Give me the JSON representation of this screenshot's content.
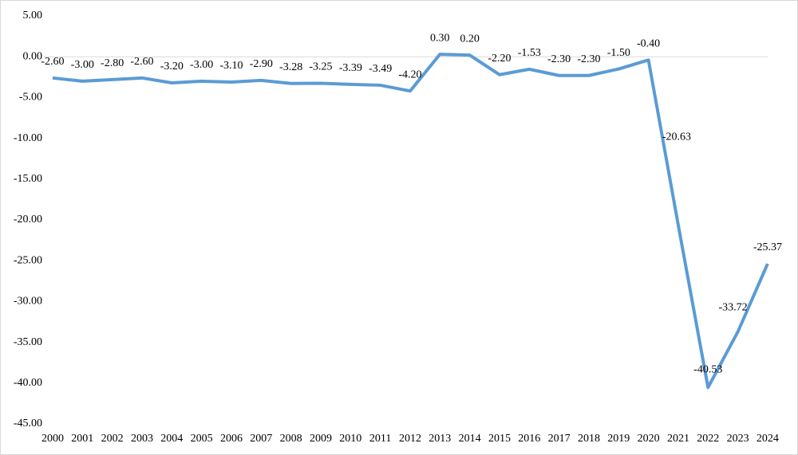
{
  "chart_data": {
    "type": "line",
    "categories": [
      "2000",
      "2001",
      "2002",
      "2003",
      "2004",
      "2005",
      "2006",
      "2007",
      "2008",
      "2009",
      "2010",
      "2011",
      "2012",
      "2013",
      "2014",
      "2015",
      "2016",
      "2017",
      "2018",
      "2019",
      "2020",
      "2021",
      "2022",
      "2023",
      "2024"
    ],
    "series": [
      {
        "color": "#5b9bd5",
        "values": [
          -2.6,
          -3.0,
          -2.8,
          -2.6,
          -3.2,
          -3.0,
          -3.1,
          -2.9,
          -3.28,
          -3.25,
          -3.39,
          -3.49,
          -4.2,
          0.3,
          0.2,
          -2.2,
          -1.53,
          -2.3,
          -2.3,
          -1.5,
          -0.4,
          -20.63,
          -40.53,
          -33.72,
          -25.37
        ],
        "value_labels": [
          "-2.60",
          "-3.00",
          "-2.80",
          "-2.60",
          "-3.20",
          "-3.00",
          "-3.10",
          "-2.90",
          "-3.28",
          "-3.25",
          "-3.39",
          "-3.49",
          "-4.20",
          "0.30",
          "0.20",
          "-2.20",
          "-1.53",
          "-2.30",
          "-2.30",
          "-1.50",
          "-0.40",
          "-20.63",
          "-40.53",
          "-33.72",
          "-25.37"
        ]
      }
    ],
    "ylim": [
      -45,
      5
    ],
    "yticks": [
      {
        "value": 5,
        "label": "5.00"
      },
      {
        "value": 0,
        "label": "0.00"
      },
      {
        "value": -5,
        "label": "-5.00"
      },
      {
        "value": -10,
        "label": "-10.00"
      },
      {
        "value": -15,
        "label": "-15.00"
      },
      {
        "value": -20,
        "label": "-20.00"
      },
      {
        "value": -25,
        "label": "-25.00"
      },
      {
        "value": -30,
        "label": "-30.00"
      },
      {
        "value": -35,
        "label": "-35.00"
      },
      {
        "value": -40,
        "label": "-40.00"
      },
      {
        "value": -45,
        "label": "-45.00"
      }
    ]
  }
}
